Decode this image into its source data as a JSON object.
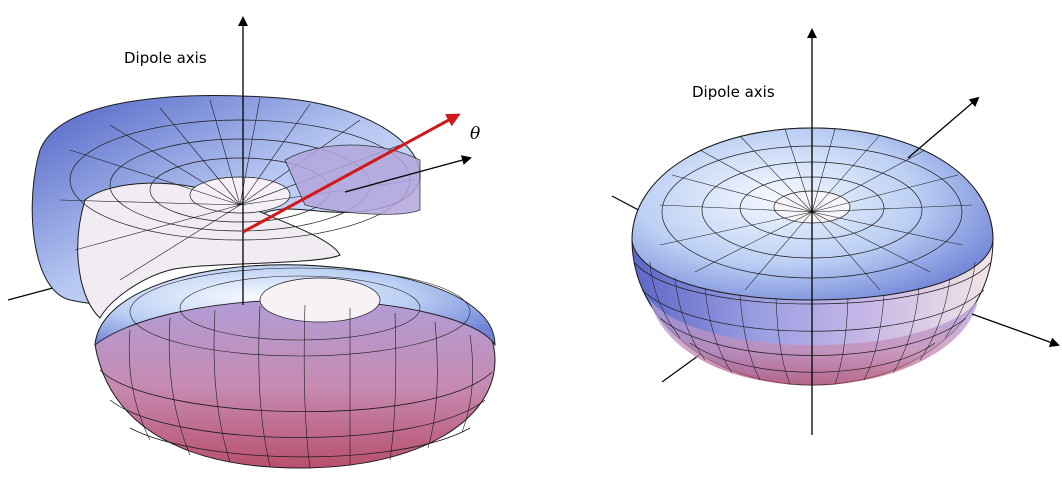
{
  "figures": [
    {
      "id": "cutaway-pattern",
      "axis_label": "Dipole axis",
      "angle_symbol": "θ"
    },
    {
      "id": "full-pattern",
      "axis_label": "Dipole axis"
    }
  ],
  "colors": {
    "surface_light": "#dfe9fb",
    "surface_mid": "#9fb0e6",
    "surface_dark": "#5e6dc9",
    "bottom_tint": "#c2607f",
    "mesh": "#1b1b1b",
    "vector_arrow": "#d01a1a",
    "axes": "#000000"
  }
}
